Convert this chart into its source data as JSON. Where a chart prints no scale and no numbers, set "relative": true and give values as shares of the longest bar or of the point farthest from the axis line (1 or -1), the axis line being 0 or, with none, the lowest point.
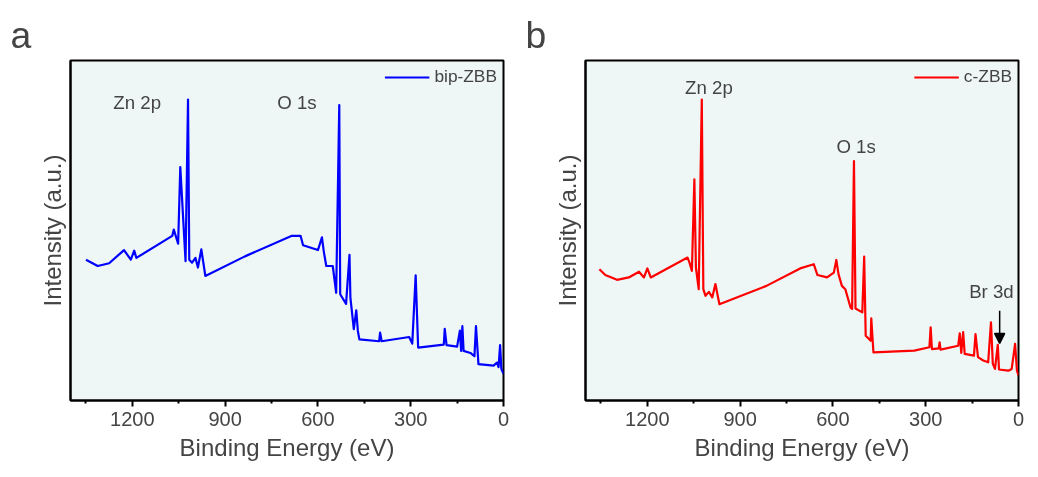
{
  "chart_data": [
    {
      "type": "line",
      "title": "a",
      "xlabel": "Binding Energy (eV)",
      "ylabel": "Intensity (a.u.)",
      "relative": true,
      "xlim": [
        1400,
        0
      ],
      "xticks": [
        1200,
        900,
        600,
        300,
        0
      ],
      "tick_labels": "x",
      "legend": "top right",
      "series": [
        {
          "name": "bip-ZBB",
          "color": "#0000ff",
          "x": [
            1350,
            1312,
            1275,
            1227,
            1205,
            1194,
            1187,
            1071,
            1066,
            1052,
            1045,
            1028,
            1020,
            1016,
            1007,
            996,
            988,
            977,
            964,
            836,
            686,
            656,
            648,
            600,
            587,
            581,
            573,
            552,
            541,
            531,
            528,
            509,
            498,
            495,
            484,
            476,
            471,
            466,
            402,
            399,
            394,
            305,
            295,
            284,
            276,
            193,
            190,
            184,
            150,
            141,
            137,
            133,
            129,
            107,
            94,
            89,
            81,
            32,
            21,
            16,
            11,
            7,
            0
          ],
          "values": [
            0.468,
            0.447,
            0.456,
            0.5,
            0.468,
            0.498,
            0.474,
            0.547,
            0.568,
            0.521,
            0.776,
            0.463,
            1.0,
            0.468,
            0.458,
            0.474,
            0.442,
            0.502,
            0.414,
            0.479,
            0.547,
            0.547,
            0.516,
            0.5,
            0.542,
            0.495,
            0.447,
            0.447,
            0.358,
            0.982,
            0.353,
            0.321,
            0.484,
            0.342,
            0.237,
            0.3,
            0.232,
            0.203,
            0.197,
            0.226,
            0.197,
            0.211,
            0.189,
            0.416,
            0.176,
            0.186,
            0.238,
            0.184,
            0.179,
            0.232,
            0.165,
            0.247,
            0.165,
            0.158,
            0.147,
            0.247,
            0.121,
            0.116,
            0.126,
            0.111,
            0.184,
            0.105,
            0.089
          ]
        }
      ],
      "annotations": [
        "Zn 2p",
        "O 1s"
      ]
    },
    {
      "type": "line",
      "title": "b",
      "xlabel": "Binding Energy (eV)",
      "ylabel": "Intensity (a.u.)",
      "relative": true,
      "xlim": [
        1400,
        0
      ],
      "xticks": [
        1200,
        900,
        600,
        300,
        0
      ],
      "tick_labels": "x",
      "legend": "top right",
      "series": [
        {
          "name": "c-ZBB",
          "color": "#ff0000",
          "x": [
            1355,
            1336,
            1298,
            1260,
            1227,
            1211,
            1200,
            1189,
            1070,
            1064,
            1056,
            1048,
            1043,
            1034,
            1024,
            1019,
            1012,
            1001,
            990,
            980,
            967,
            815,
            706,
            662,
            650,
            619,
            597,
            589,
            582,
            571,
            560,
            543,
            538,
            532,
            527,
            505,
            499,
            494,
            478,
            476,
            469,
            337,
            288,
            284,
            280,
            258,
            255,
            252,
            195,
            190,
            185,
            179,
            174,
            144,
            139,
            131,
            114,
            98,
            89,
            83,
            76,
            67,
            63,
            33,
            22,
            11,
            5,
            0
          ],
          "values": [
            0.436,
            0.417,
            0.401,
            0.409,
            0.428,
            0.409,
            0.439,
            0.409,
            0.475,
            0.459,
            0.431,
            0.735,
            0.442,
            0.37,
            1.0,
            0.37,
            0.348,
            0.361,
            0.343,
            0.387,
            0.32,
            0.381,
            0.439,
            0.453,
            0.417,
            0.409,
            0.425,
            0.467,
            0.42,
            0.381,
            0.37,
            0.309,
            0.304,
            0.796,
            0.306,
            0.293,
            0.478,
            0.215,
            0.199,
            0.273,
            0.16,
            0.166,
            0.177,
            0.243,
            0.171,
            0.173,
            0.193,
            0.169,
            0.182,
            0.223,
            0.158,
            0.227,
            0.155,
            0.149,
            0.221,
            0.144,
            0.133,
            0.127,
            0.26,
            0.122,
            0.105,
            0.185,
            0.103,
            0.099,
            0.105,
            0.188,
            0.099,
            0.083
          ]
        }
      ],
      "annotations": [
        "Zn 2p",
        "O 1s",
        "Br 3d"
      ]
    }
  ]
}
